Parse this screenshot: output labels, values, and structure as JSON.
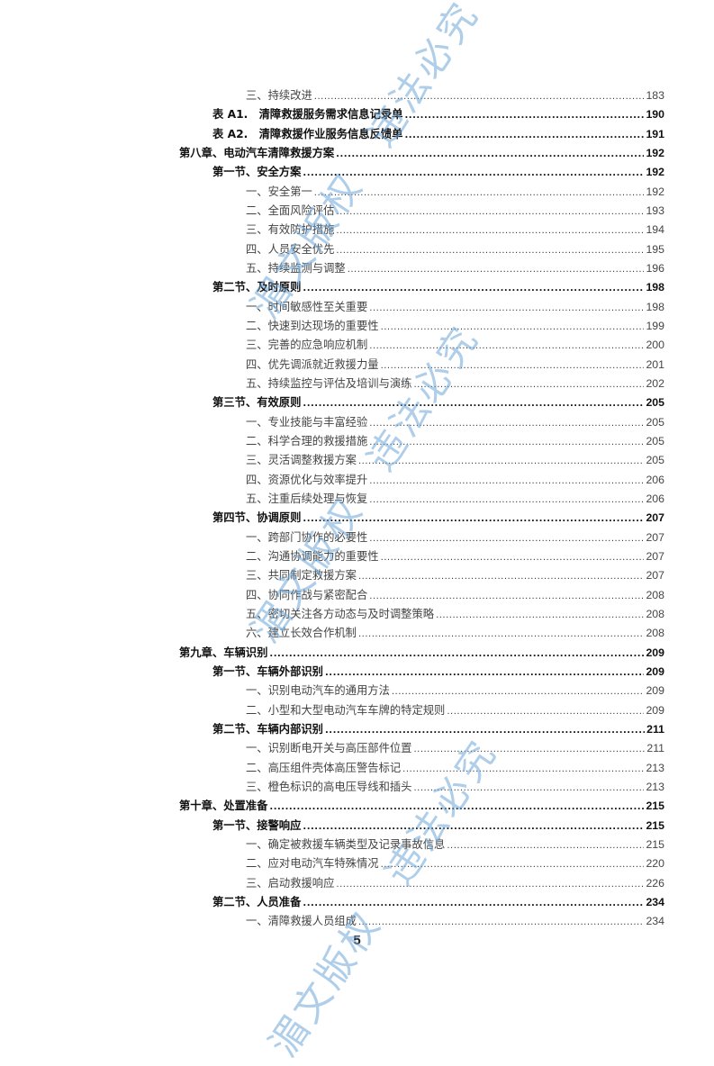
{
  "toc": [
    {
      "level": 2,
      "text": "三、持续改进",
      "page": "183"
    },
    {
      "level": 1,
      "text": "表 A1.　清障救援服务需求信息记录单",
      "page": "190"
    },
    {
      "level": 1,
      "text": "表 A2.　清障救援作业服务信息反馈单",
      "page": "191"
    },
    {
      "level": 0,
      "text": "第八章、电动汽车清障救援方案",
      "page": "192"
    },
    {
      "level": 1,
      "text": "第一节、安全方案",
      "page": "192"
    },
    {
      "level": 2,
      "text": "一、安全第一",
      "page": "192"
    },
    {
      "level": 2,
      "text": "二、全面风险评估",
      "page": "193"
    },
    {
      "level": 2,
      "text": "三、有效防护措施",
      "page": "194"
    },
    {
      "level": 2,
      "text": "四、人员安全优先",
      "page": "195"
    },
    {
      "level": 2,
      "text": "五、持续监测与调整",
      "page": "196"
    },
    {
      "level": 1,
      "text": "第二节、及时原则",
      "page": "198"
    },
    {
      "level": 2,
      "text": "一、时间敏感性至关重要",
      "page": "198"
    },
    {
      "level": 2,
      "text": "二、快速到达现场的重要性",
      "page": "199"
    },
    {
      "level": 2,
      "text": "三、完善的应急响应机制",
      "page": "200"
    },
    {
      "level": 2,
      "text": "四、优先调派就近救援力量",
      "page": "201"
    },
    {
      "level": 2,
      "text": "五、持续监控与评估及培训与演练",
      "page": "202"
    },
    {
      "level": 1,
      "text": "第三节、有效原则",
      "page": "205"
    },
    {
      "level": 2,
      "text": "一、专业技能与丰富经验",
      "page": "205"
    },
    {
      "level": 2,
      "text": "二、科学合理的救援措施",
      "page": "205"
    },
    {
      "level": 2,
      "text": "三、灵活调整救援方案",
      "page": "205"
    },
    {
      "level": 2,
      "text": "四、资源优化与效率提升",
      "page": "206"
    },
    {
      "level": 2,
      "text": "五、注重后续处理与恢复",
      "page": "206"
    },
    {
      "level": 1,
      "text": "第四节、协调原则",
      "page": "207"
    },
    {
      "level": 2,
      "text": "一、跨部门协作的必要性",
      "page": "207"
    },
    {
      "level": 2,
      "text": "二、沟通协调能力的重要性",
      "page": "207"
    },
    {
      "level": 2,
      "text": "三、共同制定救援方案",
      "page": "207"
    },
    {
      "level": 2,
      "text": "四、协同作战与紧密配合",
      "page": "208"
    },
    {
      "level": 2,
      "text": "五、密切关注各方动态与及时调整策略",
      "page": "208"
    },
    {
      "level": 2,
      "text": "六、建立长效合作机制",
      "page": "208"
    },
    {
      "level": 0,
      "text": "第九章、车辆识别",
      "page": "209"
    },
    {
      "level": 1,
      "text": "第一节、车辆外部识别",
      "page": "209"
    },
    {
      "level": 2,
      "text": "一、识别电动汽车的通用方法",
      "page": "209"
    },
    {
      "level": 2,
      "text": "二、小型和大型电动汽车车牌的特定规则",
      "page": "209"
    },
    {
      "level": 1,
      "text": "第二节、车辆内部识别",
      "page": "211"
    },
    {
      "level": 2,
      "text": "一、识别断电开关与高压部件位置",
      "page": "211"
    },
    {
      "level": 2,
      "text": "二、高压组件壳体高压警告标记",
      "page": "213"
    },
    {
      "level": 2,
      "text": "三、橙色标识的高电压导线和插头",
      "page": "213"
    },
    {
      "level": 0,
      "text": "第十章、处置准备",
      "page": "215"
    },
    {
      "level": 1,
      "text": "第一节、接警响应",
      "page": "215"
    },
    {
      "level": 2,
      "text": "一、确定被救援车辆类型及记录事故信息",
      "page": "215"
    },
    {
      "level": 2,
      "text": "二、应对电动汽车特殊情况",
      "page": "220"
    },
    {
      "level": 2,
      "text": "三、启动救援响应",
      "page": "226"
    },
    {
      "level": 1,
      "text": "第二节、人员准备",
      "page": "234"
    },
    {
      "level": 2,
      "text": "一、清障救援人员组成",
      "page": "234"
    }
  ],
  "page_number": "5",
  "watermark": "湄文版权　违法必究",
  "colors": {
    "watermark": "#8fbbe3",
    "text": "#222222"
  }
}
